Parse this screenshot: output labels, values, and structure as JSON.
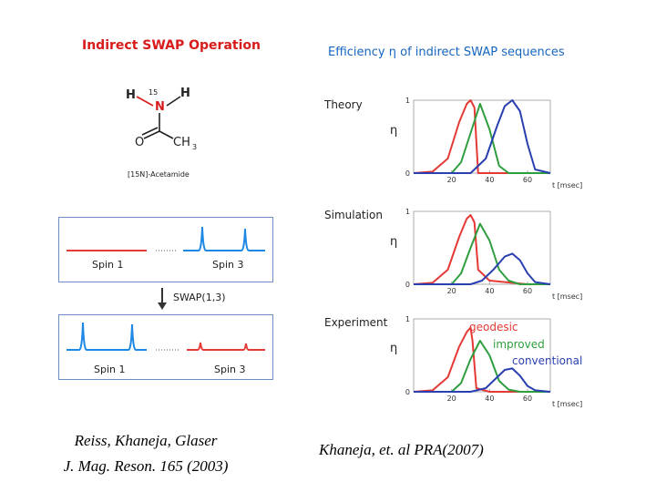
{
  "left": {
    "title": "Indirect SWAP Operation",
    "molecule": {
      "atom_h1": "H",
      "atom_h2": "H",
      "atom_n": "N",
      "isotope": "15",
      "atom_o": "O",
      "atom_ch3": "CH",
      "subscript_3": "3",
      "caption": "[15N]-Acetamide"
    },
    "box1": {
      "label_left": "Spin 1",
      "label_right": "Spin 3"
    },
    "swap_label": "SWAP(1,3)",
    "box2": {
      "label_left": "Spin 1",
      "label_right": "Spin 3"
    },
    "citation_line1": "Reiss, Khaneja, Glaser",
    "citation_line2": "J. Mag. Reson. 165 (2003)"
  },
  "right": {
    "title": "Efficiency η of indirect SWAP sequences",
    "citation": "Khaneja, et. al PRA(2007)",
    "eta_symbol": "η",
    "x_unit": "t [msec]",
    "legend": {
      "geodesic": "geodesic",
      "improved": "improved",
      "conventional": "conventional"
    },
    "colors": {
      "geodesic": "#e53935",
      "improved": "#2e9e3f",
      "conventional": "#2a3fb0"
    }
  },
  "chart_data": [
    {
      "type": "line",
      "panel": "Theory",
      "xlabel": "t [msec]",
      "ylabel": "η",
      "xlim": [
        0,
        72
      ],
      "ylim": [
        0,
        1
      ],
      "xticks": [
        20,
        40,
        60
      ],
      "yticks": [
        0,
        1
      ],
      "series": [
        {
          "x": [
            0,
            10,
            18,
            24,
            28,
            30,
            32,
            34,
            40,
            60,
            72
          ],
          "values": [
            0,
            0.02,
            0.2,
            0.7,
            0.95,
            1.0,
            0.9,
            0.0,
            0,
            0,
            0
          ]
        },
        {
          "x": [
            0,
            20,
            25,
            30,
            35,
            40,
            45,
            50,
            72
          ],
          "values": [
            0,
            0,
            0.15,
            0.55,
            0.95,
            0.6,
            0.1,
            0,
            0
          ]
        },
        {
          "x": [
            0,
            30,
            38,
            44,
            48,
            52,
            56,
            60,
            64,
            72
          ],
          "values": [
            0,
            0,
            0.2,
            0.65,
            0.92,
            1.0,
            0.85,
            0.4,
            0.05,
            0
          ]
        }
      ]
    },
    {
      "type": "line",
      "panel": "Simulation",
      "xlabel": "t [msec]",
      "ylabel": "η",
      "xlim": [
        0,
        72
      ],
      "ylim": [
        0,
        1
      ],
      "xticks": [
        20,
        40,
        60
      ],
      "yticks": [
        0,
        1
      ],
      "series": [
        {
          "x": [
            0,
            10,
            18,
            24,
            28,
            30,
            32,
            34,
            40,
            60,
            72
          ],
          "values": [
            0,
            0.02,
            0.2,
            0.65,
            0.9,
            0.95,
            0.85,
            0.2,
            0.05,
            0,
            0
          ]
        },
        {
          "x": [
            0,
            20,
            25,
            30,
            35,
            40,
            45,
            50,
            56,
            72
          ],
          "values": [
            0,
            0,
            0.15,
            0.5,
            0.83,
            0.6,
            0.2,
            0.05,
            0,
            0
          ]
        },
        {
          "x": [
            0,
            30,
            36,
            42,
            48,
            52,
            56,
            60,
            64,
            72
          ],
          "values": [
            0,
            0,
            0.05,
            0.2,
            0.38,
            0.42,
            0.33,
            0.15,
            0.03,
            0
          ]
        }
      ]
    },
    {
      "type": "line",
      "panel": "Experiment",
      "xlabel": "t [msec]",
      "ylabel": "η",
      "xlim": [
        0,
        72
      ],
      "ylim": [
        0,
        1
      ],
      "xticks": [
        20,
        40,
        60
      ],
      "yticks": [
        0,
        1
      ],
      "series": [
        {
          "x": [
            0,
            10,
            18,
            24,
            28,
            30,
            31,
            33,
            40,
            60,
            72
          ],
          "values": [
            0,
            0.02,
            0.2,
            0.62,
            0.82,
            0.88,
            0.7,
            0.05,
            0,
            0,
            0
          ]
        },
        {
          "x": [
            0,
            20,
            25,
            30,
            35,
            40,
            45,
            50,
            56,
            72
          ],
          "values": [
            0,
            0,
            0.12,
            0.45,
            0.7,
            0.5,
            0.15,
            0.03,
            0,
            0
          ]
        },
        {
          "x": [
            0,
            30,
            38,
            44,
            48,
            52,
            56,
            60,
            64,
            72
          ],
          "values": [
            0,
            0,
            0.05,
            0.2,
            0.3,
            0.32,
            0.22,
            0.08,
            0.02,
            0
          ]
        }
      ]
    }
  ]
}
